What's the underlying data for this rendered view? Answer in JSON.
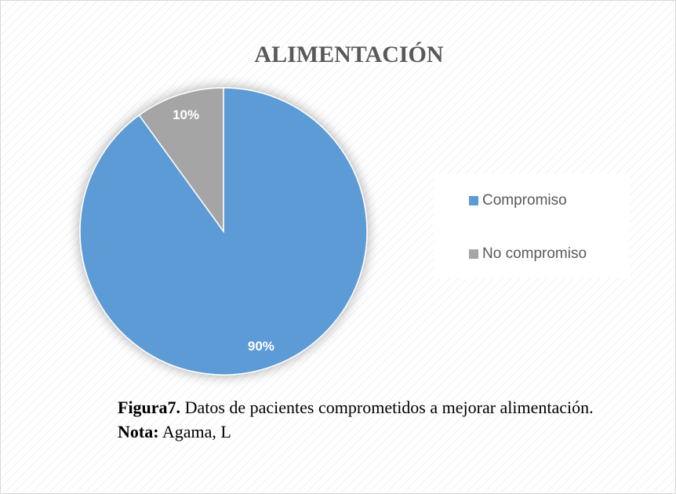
{
  "chart_data": {
    "type": "pie",
    "title": "ALIMENTACIÓN",
    "categories": [
      "Compromiso",
      "No compromiso"
    ],
    "values": [
      90,
      10
    ],
    "value_labels": [
      "90%",
      "10%"
    ],
    "colors": [
      "#5b9bd5",
      "#a5a5a5"
    ],
    "legend": "right"
  },
  "caption": {
    "label": "Figura7.",
    "text": "Datos de pacientes comprometidos a mejorar alimentación.",
    "note_label": "Nota:",
    "note": "Agama, L"
  }
}
